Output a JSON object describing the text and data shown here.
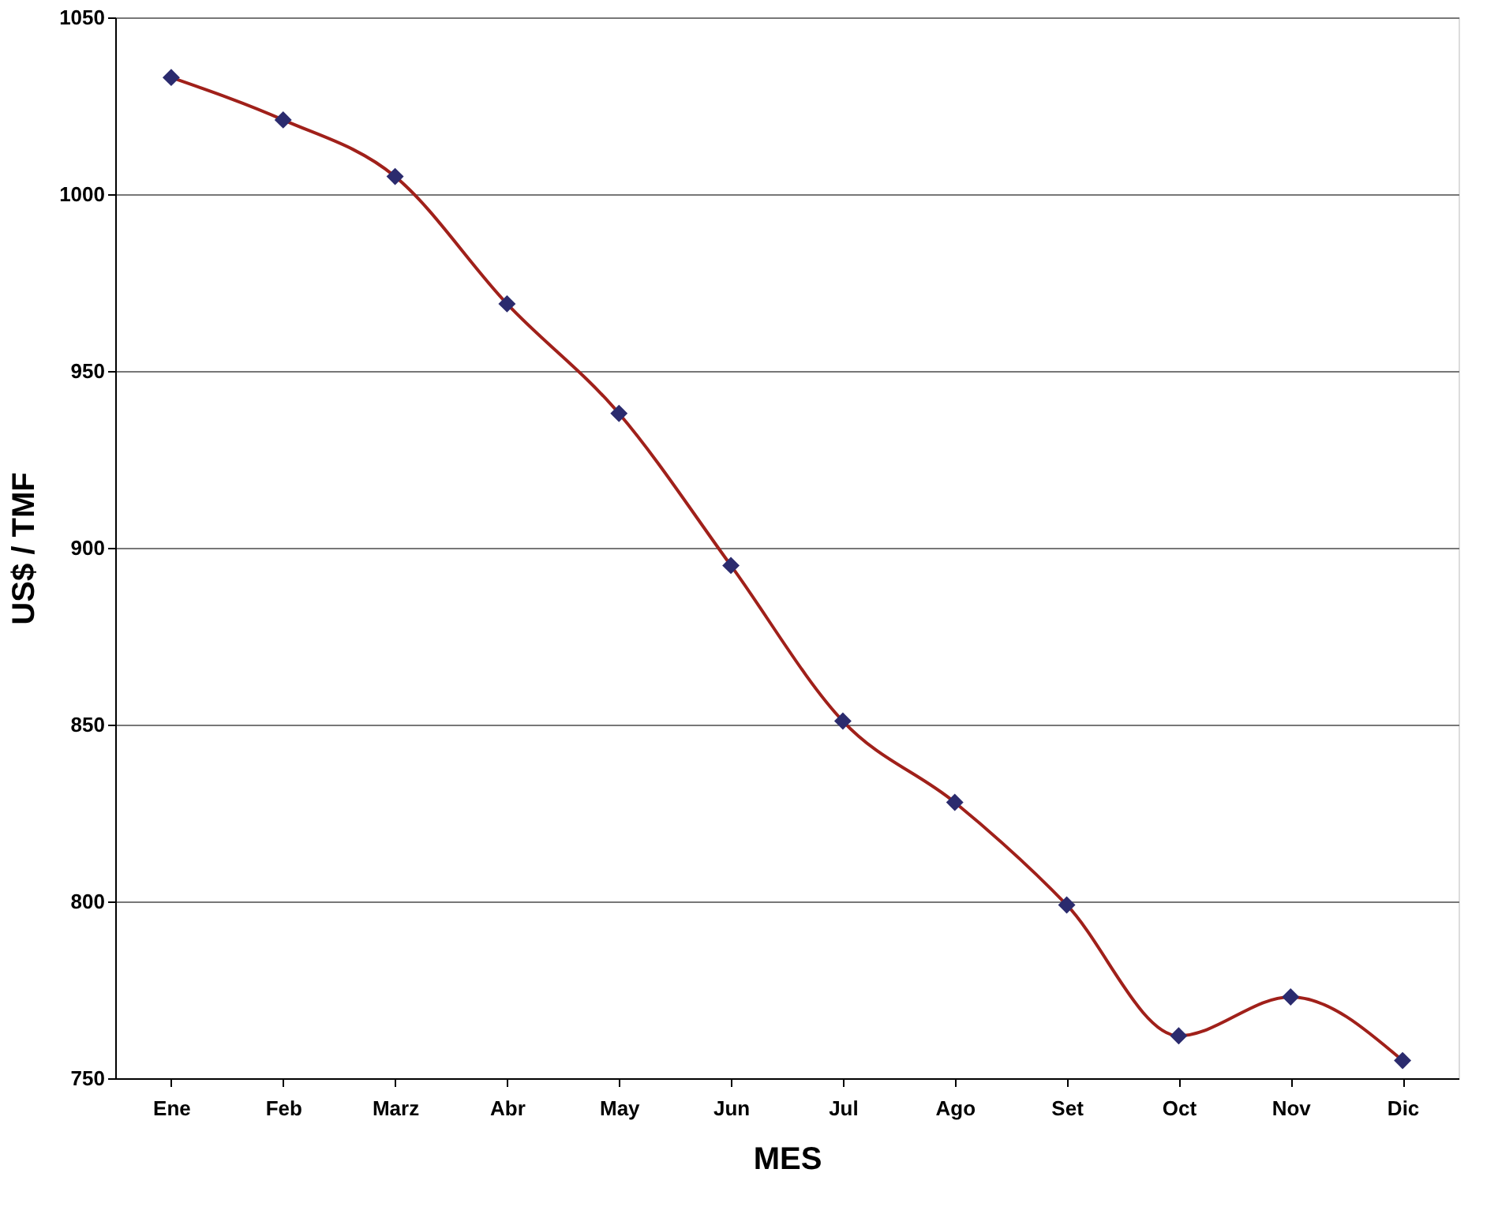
{
  "chart_data": {
    "type": "line",
    "xlabel": "MES",
    "ylabel": "US$ / TMF",
    "categories": [
      "Ene",
      "Feb",
      "Marz",
      "Abr",
      "May",
      "Jun",
      "Jul",
      "Ago",
      "Set",
      "Oct",
      "Nov",
      "Dic"
    ],
    "series": [
      {
        "color": "#a0201a",
        "values": [
          1033,
          1021,
          1005,
          969,
          938,
          895,
          851,
          828,
          799,
          762,
          773,
          755
        ]
      }
    ],
    "marker": "diamond",
    "line_style": "solid",
    "ylim": [
      750,
      1050
    ],
    "yticks": [
      750,
      800,
      850,
      900,
      950,
      1000,
      1050
    ],
    "grid": "y"
  }
}
